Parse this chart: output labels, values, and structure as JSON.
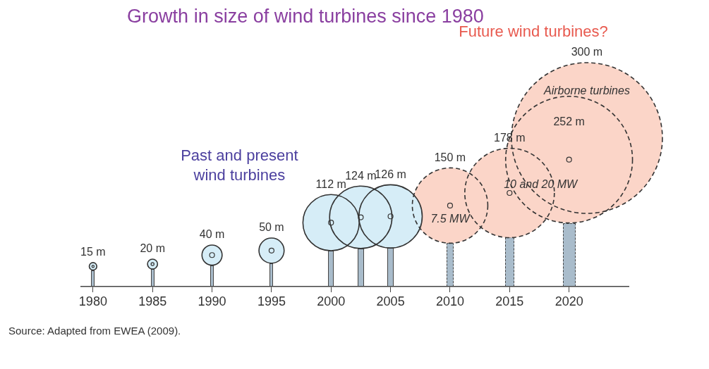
{
  "chart_data": {
    "type": "bubble",
    "title": "Growth in size of wind turbines since 1980",
    "xlim": [
      1979,
      2025
    ],
    "xticks": [
      1980,
      1985,
      1990,
      1995,
      2000,
      2005,
      2010,
      2015,
      2020
    ],
    "series": [
      {
        "x": [
          1980,
          1985,
          1990,
          1995,
          2000,
          2002.5,
          2005
        ],
        "values": [
          15,
          20,
          40,
          50,
          112,
          124,
          126
        ],
        "sizes": [
          0.0025,
          0.0044,
          0.0178,
          0.0278,
          0.139,
          0.171,
          0.176
        ],
        "value_labels": [
          "15 m",
          "20 m",
          "40 m",
          "50 m",
          "112 m",
          "124 m",
          "126 m"
        ],
        "color": "#d6edf7",
        "line_style": "solid"
      },
      {
        "x": [
          2010,
          2015,
          2020
        ],
        "values": [
          150,
          178,
          252
        ],
        "sizes": [
          0.25,
          0.352,
          0.706
        ],
        "value_labels": [
          "150 m",
          "178 m",
          "252 m"
        ],
        "color": "#fbd5c8",
        "line_style": "dashed"
      },
      {
        "x": [
          2021.5
        ],
        "values": [
          300
        ],
        "sizes": [
          1
        ],
        "value_labels": [
          "300 m"
        ],
        "color": "#fbd5c8",
        "line_style": "dashed"
      }
    ],
    "annotations": [
      "Past and present wind turbines",
      "Future wind turbines?",
      "7.5 MW",
      "10 and 20 MW",
      "Airborne turbines",
      "Source: Adapted from EWEA (2009)."
    ]
  }
}
